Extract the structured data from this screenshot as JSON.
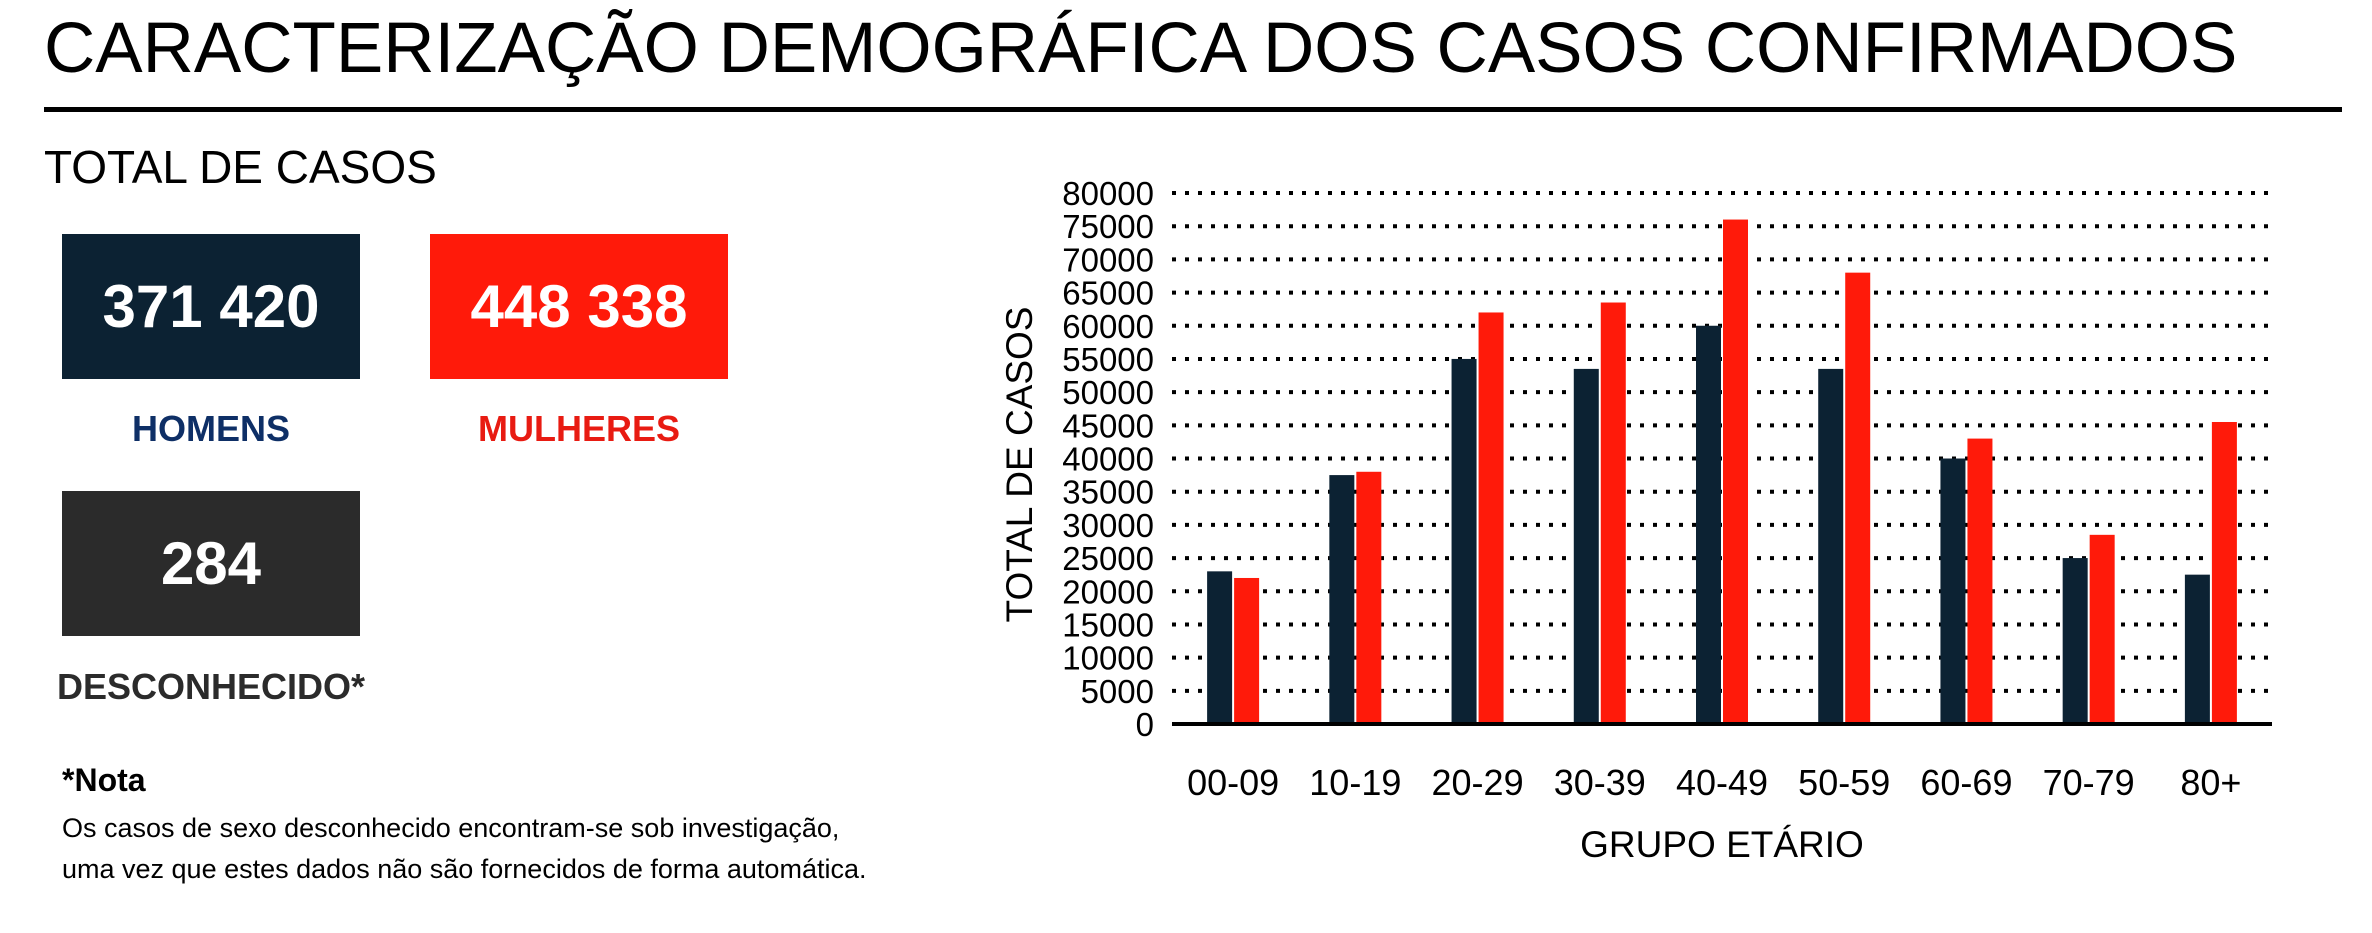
{
  "page": {
    "title": "CARACTERIZAÇÃO DEMOGRÁFICA DOS CASOS CONFIRMADOS",
    "section_label": "TOTAL DE CASOS"
  },
  "cards": {
    "men": {
      "value": "371 420",
      "label": "HOMENS",
      "color": "#0c2233",
      "label_color": "#0e2f66"
    },
    "women": {
      "value": "448 338",
      "label": "MULHERES",
      "color": "#ff1a0a",
      "label_color": "#e81b12"
    },
    "unknown": {
      "value": "284",
      "label": "DESCONHECIDO*",
      "color": "#2b2b2b",
      "label_color": "#2b2b2b"
    }
  },
  "note": {
    "title": "*Nota",
    "line1": "Os casos de sexo desconhecido encontram-se sob investigação,",
    "line2": "uma vez que estes dados não são fornecidos de forma automática."
  },
  "chart_data": {
    "type": "bar",
    "categories": [
      "00-09",
      "10-19",
      "20-29",
      "30-39",
      "40-49",
      "50-59",
      "60-69",
      "70-79",
      "80+"
    ],
    "series": [
      {
        "values": [
          23000,
          37500,
          55000,
          53500,
          60000,
          53500,
          40000,
          25000,
          22500
        ],
        "color": "#0c2233"
      },
      {
        "values": [
          22000,
          38000,
          62000,
          63500,
          76000,
          68000,
          43000,
          28500,
          45500
        ],
        "color": "#ff1a0a"
      }
    ],
    "xlabel": "GRUPO ETÁRIO",
    "ylabel": "TOTAL DE CASOS",
    "ylim": [
      0,
      80000
    ],
    "ytick_step": 5000,
    "yticks": [
      "0",
      "5000",
      "10000",
      "15000",
      "20000",
      "25000",
      "30000",
      "35000",
      "40000",
      "45000",
      "50000",
      "55000",
      "60000",
      "65000",
      "70000",
      "75000",
      "80000"
    ],
    "grid": true,
    "legend": "none"
  }
}
